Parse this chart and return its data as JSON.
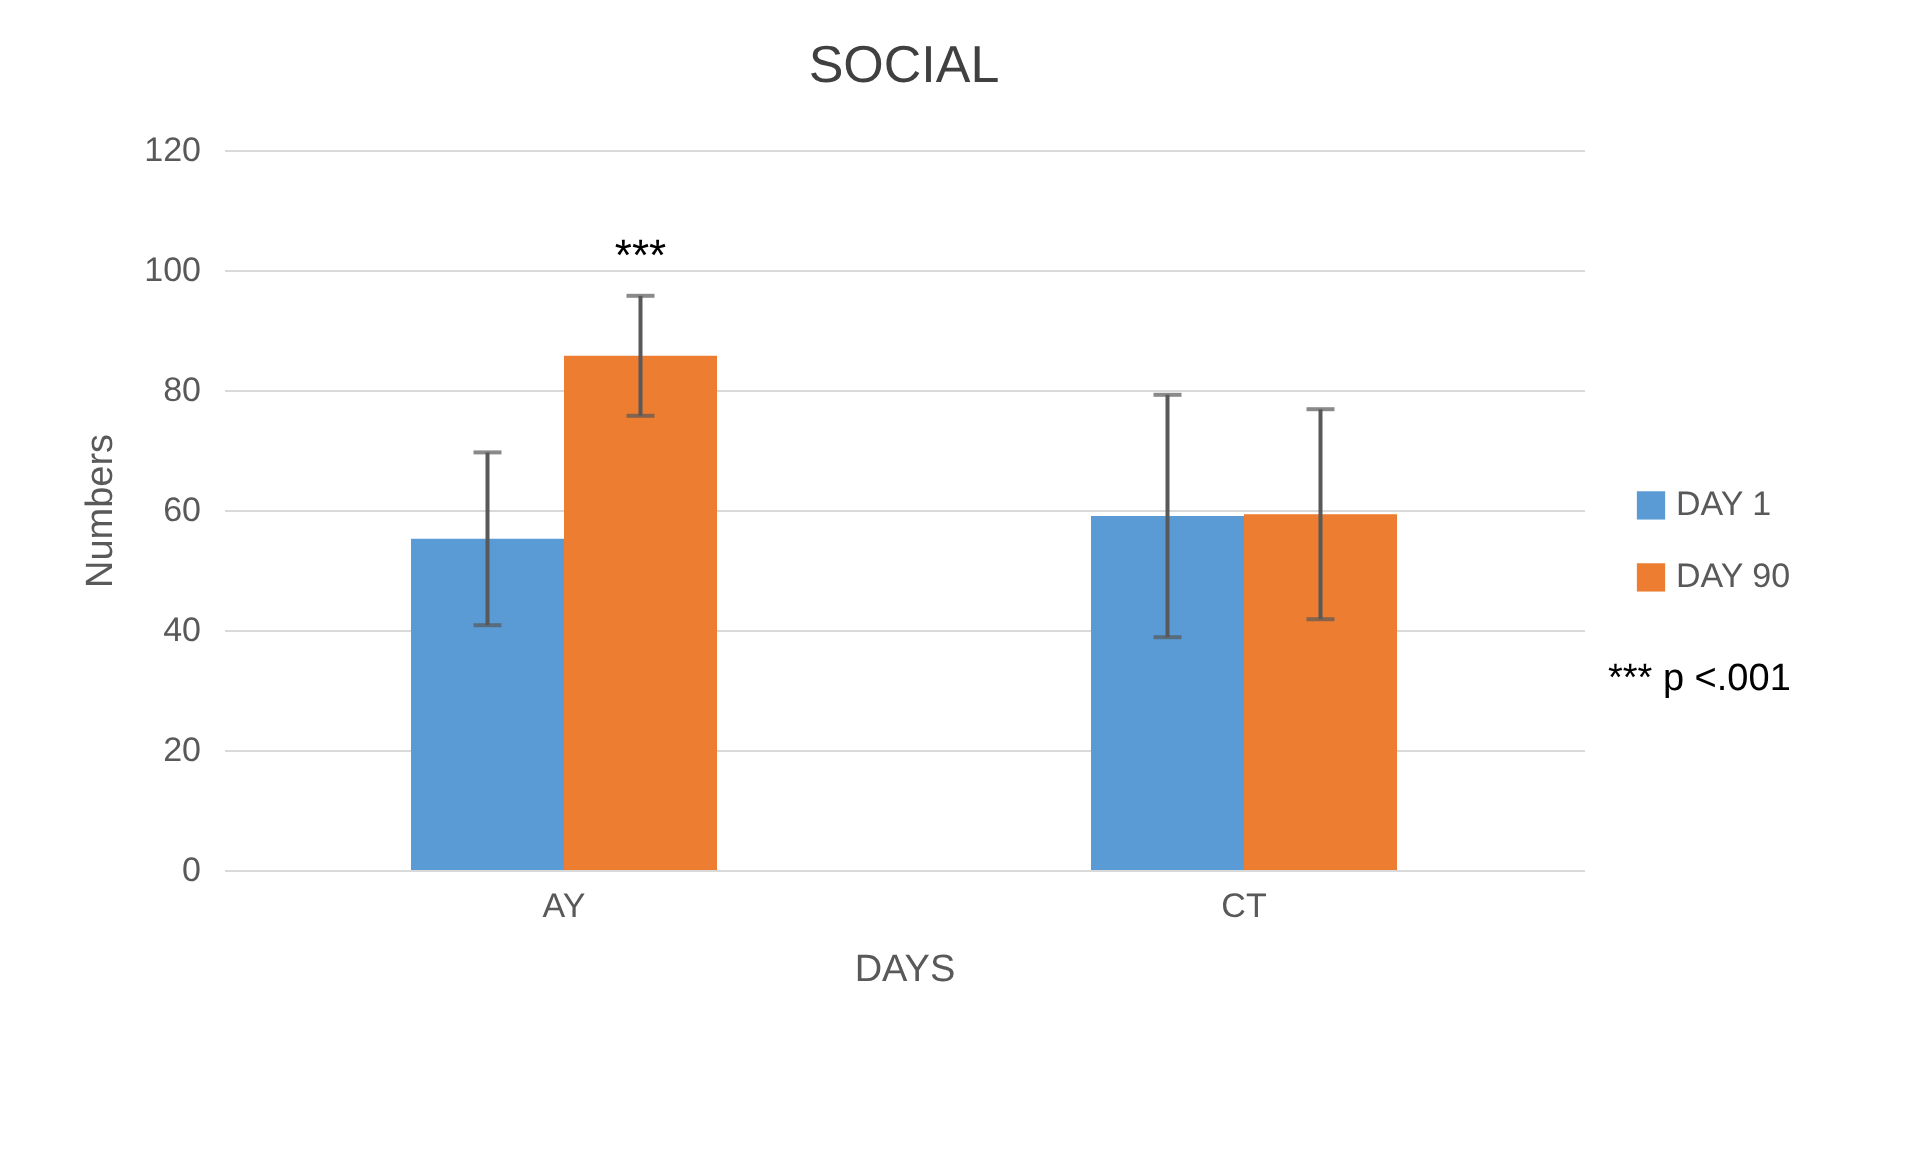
{
  "chart_data": {
    "type": "bar",
    "title": "SOCIAL",
    "xlabel": "DAYS",
    "ylabel": "Numbers",
    "categories": [
      "AY",
      "CT"
    ],
    "series": [
      {
        "name": "DAY 1",
        "color": "#5b9bd5",
        "values": [
          55.2,
          59.0
        ],
        "errors": [
          14.4,
          20.2
        ]
      },
      {
        "name": "DAY 90",
        "color": "#ed7d31",
        "values": [
          85.7,
          59.3
        ],
        "errors": [
          10.0,
          17.5
        ]
      }
    ],
    "ylim": [
      0,
      120
    ],
    "yticks": [
      0,
      20,
      40,
      60,
      80,
      100,
      120
    ],
    "grid": "y",
    "legend": "right",
    "annotations": [
      "***",
      "*** p <.001"
    ]
  }
}
